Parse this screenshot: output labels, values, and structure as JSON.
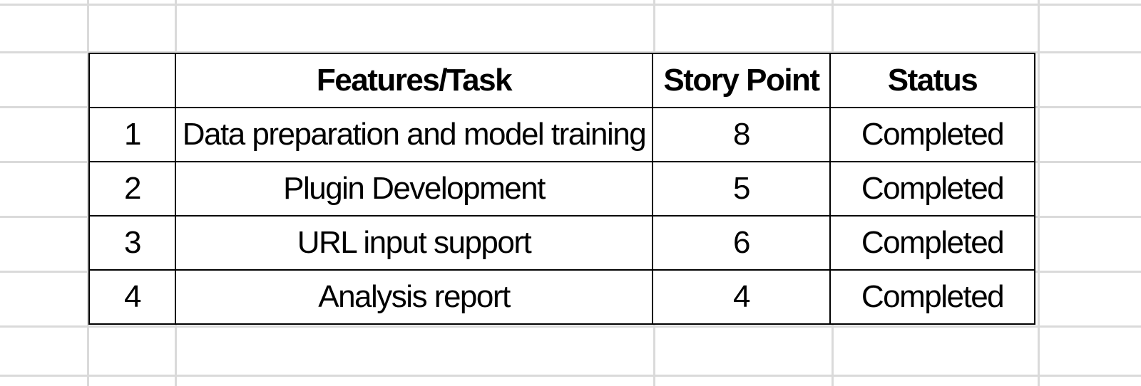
{
  "table": {
    "headers": [
      "",
      "Features/Task",
      "Story Point",
      "Status"
    ],
    "rows": [
      {
        "num": "1",
        "task": "Data preparation and model training",
        "story_point": "8",
        "status": "Completed"
      },
      {
        "num": "2",
        "task": "Plugin Development",
        "story_point": "5",
        "status": "Completed"
      },
      {
        "num": "3",
        "task": "URL input support",
        "story_point": "6",
        "status": "Completed"
      },
      {
        "num": "4",
        "task": "Analysis report",
        "story_point": "4",
        "status": "Completed"
      }
    ]
  }
}
